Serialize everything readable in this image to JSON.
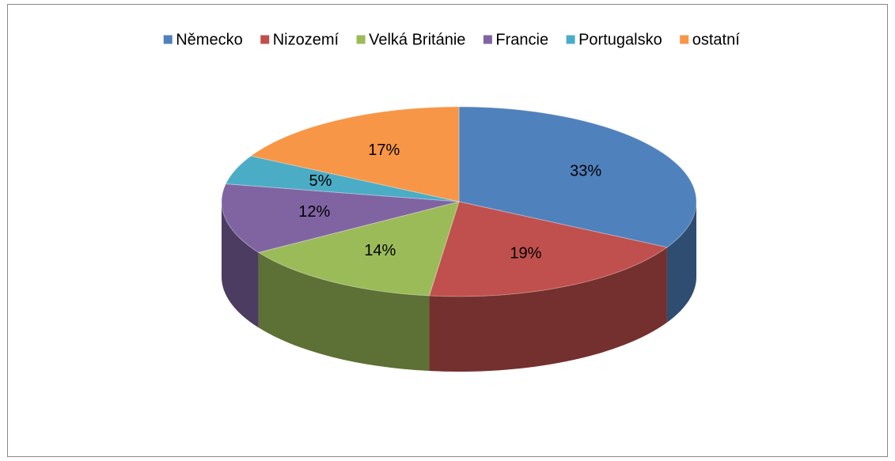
{
  "chart_data": {
    "type": "pie",
    "categories": [
      "Německo",
      "Nizozemí",
      "Velká Británie",
      "Francie",
      "Portugalsko",
      "ostatní"
    ],
    "values": [
      33,
      19,
      14,
      12,
      5,
      17
    ],
    "value_labels": [
      "33%",
      "19%",
      "14%",
      "12%",
      "5%",
      "17%"
    ],
    "colors": [
      "#4f81bd",
      "#c0504d",
      "#9bbb59",
      "#8064a2",
      "#4bacc6",
      "#f79646"
    ],
    "legend": "top"
  }
}
